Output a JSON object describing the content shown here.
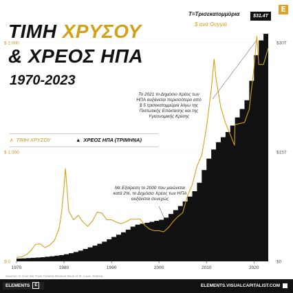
{
  "title": {
    "line1_part1": "ΤΙΜΗ",
    "line1_part2": "ΧΡΥΣΟΥ",
    "line2": "& ΧΡΕΟΣ ΗΠΑ",
    "years": "1970-2023"
  },
  "units_note": "T=Τρισεκατομμύρια",
  "gold_unit": "$ ανά Ουγγιά",
  "debt_badge": "$31.4T",
  "legend": {
    "gold": "ΤΙΜΗ ΧΡΥΣΟΥ",
    "debt": "ΧΡΕΟΣ ΗΠΑ (ΤΡΙΜΗΝΑ)"
  },
  "annotations": {
    "covid": [
      "Το 2021 το Δημόσιο Χρέος των",
      "ΗΠΑ αυξάνεται περισσότερο από",
      "$ 5 τρισεκατομμύρια λόγω της",
      "Πιστωτικής Επέκτασης και της",
      "Υγειονομικής Κρίσης"
    ],
    "y2000": [
      "Με Εξαίρεση το 2000 που μειώνεται",
      "κατά 2%, το Δημόσιο Χρέος των ΗΠΑ",
      "αυξάνεται συνεχώς"
    ]
  },
  "source": "Sources: In Gold We Trust, Federal Reserve Bank of St. Louis, Statista",
  "footer": {
    "brand": "ELEMENTS",
    "brand_mark": "E",
    "site": "ELEMENTS.VISUALCAPITALIST.COM"
  },
  "logo_letter": "E",
  "colors": {
    "gold": "#d4a017",
    "debt": "#111111",
    "title_gold": "#d4a017"
  },
  "chart_data": {
    "type": "area",
    "x_ticks": [
      1970,
      1980,
      1990,
      2000,
      2010,
      2020
    ],
    "x_range": [
      1970,
      2023
    ],
    "left_axis": {
      "label": "gold",
      "ticks": [
        0,
        1000,
        2000
      ],
      "tick_labels": [
        "$ 0",
        "$ 1.000",
        "$ 2.000"
      ],
      "range": [
        0,
        2150
      ]
    },
    "right_axis": {
      "label": "debt",
      "ticks": [
        0,
        15,
        30
      ],
      "tick_labels": [
        "$0",
        "$15T",
        "$30T"
      ],
      "range": [
        0,
        32.25
      ]
    },
    "series": [
      {
        "name": "ΤΙΜΗ ΧΡΥΣΟΥ",
        "type": "line",
        "x": [
          1970,
          1971,
          1972,
          1973,
          1974,
          1975,
          1976,
          1977,
          1978,
          1979,
          1979.5,
          1980,
          1980.3,
          1981,
          1982,
          1983,
          1984,
          1985,
          1986,
          1987,
          1988,
          1989,
          1990,
          1991,
          1992,
          1993,
          1994,
          1995,
          1996,
          1997,
          1998,
          1999,
          2000,
          2001,
          2002,
          2003,
          2004,
          2005,
          2006,
          2007,
          2008,
          2009,
          2010,
          2011,
          2011.6,
          2012,
          2013,
          2014,
          2015,
          2015.9,
          2016,
          2017,
          2018,
          2019,
          2020,
          2020.6,
          2021,
          2022,
          2023
        ],
        "y": [
          36,
          41,
          59,
          97,
          155,
          160,
          125,
          148,
          193,
          306,
          450,
          680,
          850,
          460,
          380,
          420,
          360,
          320,
          370,
          450,
          440,
          380,
          380,
          360,
          345,
          360,
          385,
          385,
          388,
          330,
          295,
          280,
          280,
          270,
          310,
          365,
          410,
          445,
          600,
          700,
          870,
          970,
          1225,
          1570,
          1850,
          1670,
          1410,
          1265,
          1160,
          1060,
          1250,
          1260,
          1270,
          1390,
          1770,
          2060,
          1800,
          1800,
          1950
        ]
      },
      {
        "name": "ΧΡΕΟΣ ΗΠΑ (ΤΡΙΜΗΝΑ)",
        "type": "area",
        "x": [
          1970,
          1975,
          1980,
          1985,
          1990,
          1995,
          2000,
          2001,
          2005,
          2008,
          2010,
          2012,
          2015,
          2018,
          2019,
          2020,
          2021,
          2022,
          2023
        ],
        "y": [
          0.37,
          0.54,
          0.91,
          1.82,
          3.2,
          4.97,
          5.63,
          5.77,
          7.9,
          10.0,
          13.5,
          16.0,
          18.1,
          21.5,
          22.7,
          27.0,
          29.6,
          31.0,
          31.4
        ]
      }
    ]
  }
}
